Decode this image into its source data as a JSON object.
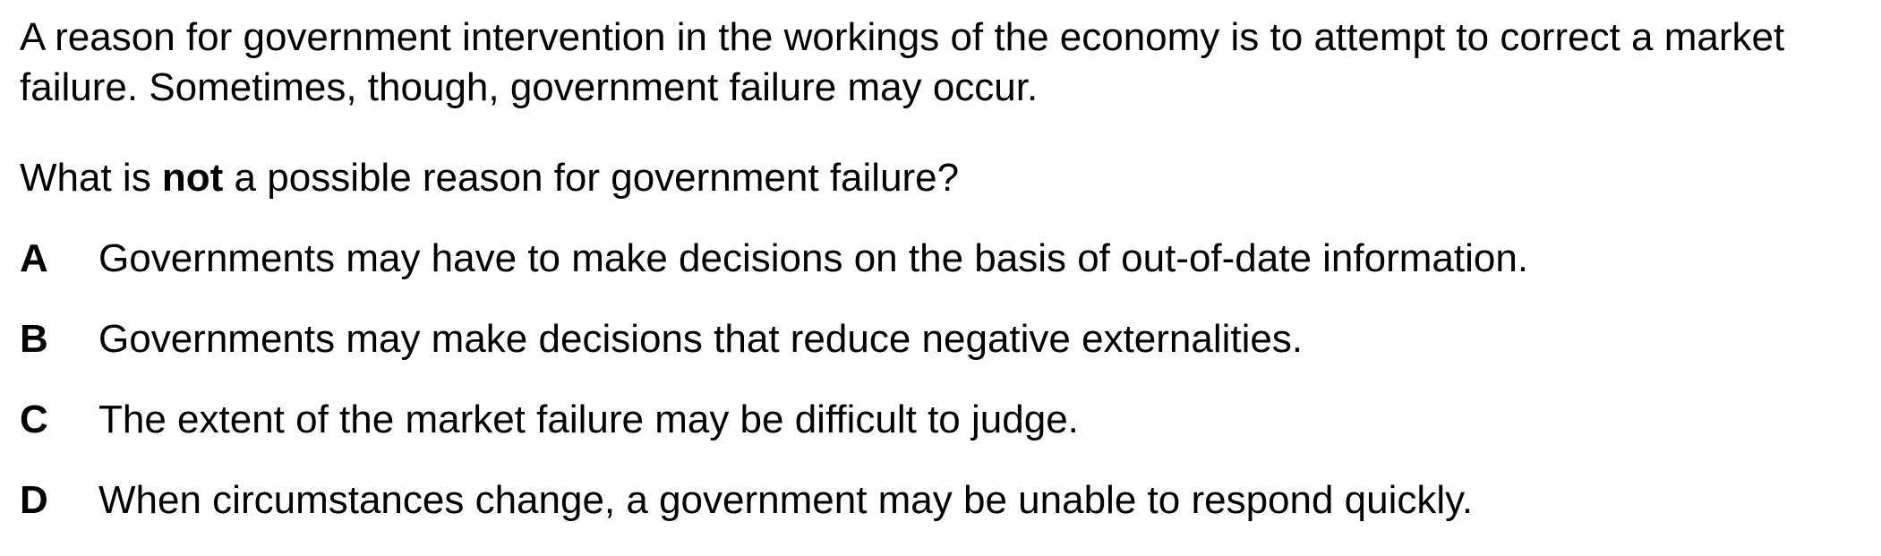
{
  "stem": {
    "text": "A reason for government intervention in the workings of the economy is to attempt to correct a market failure. Sometimes, though, government failure may occur."
  },
  "question": {
    "before": "What is ",
    "emphasis": "not",
    "after": " a possible reason for government failure?"
  },
  "options": [
    {
      "letter": "A",
      "text": "Governments may have to make decisions on the basis of out-of-date information."
    },
    {
      "letter": "B",
      "text": "Governments may make decisions that reduce negative externalities."
    },
    {
      "letter": "C",
      "text": "The extent of the market failure may be difficult to judge."
    },
    {
      "letter": "D",
      "text": "When circumstances change, a government may be unable to respond quickly."
    }
  ]
}
